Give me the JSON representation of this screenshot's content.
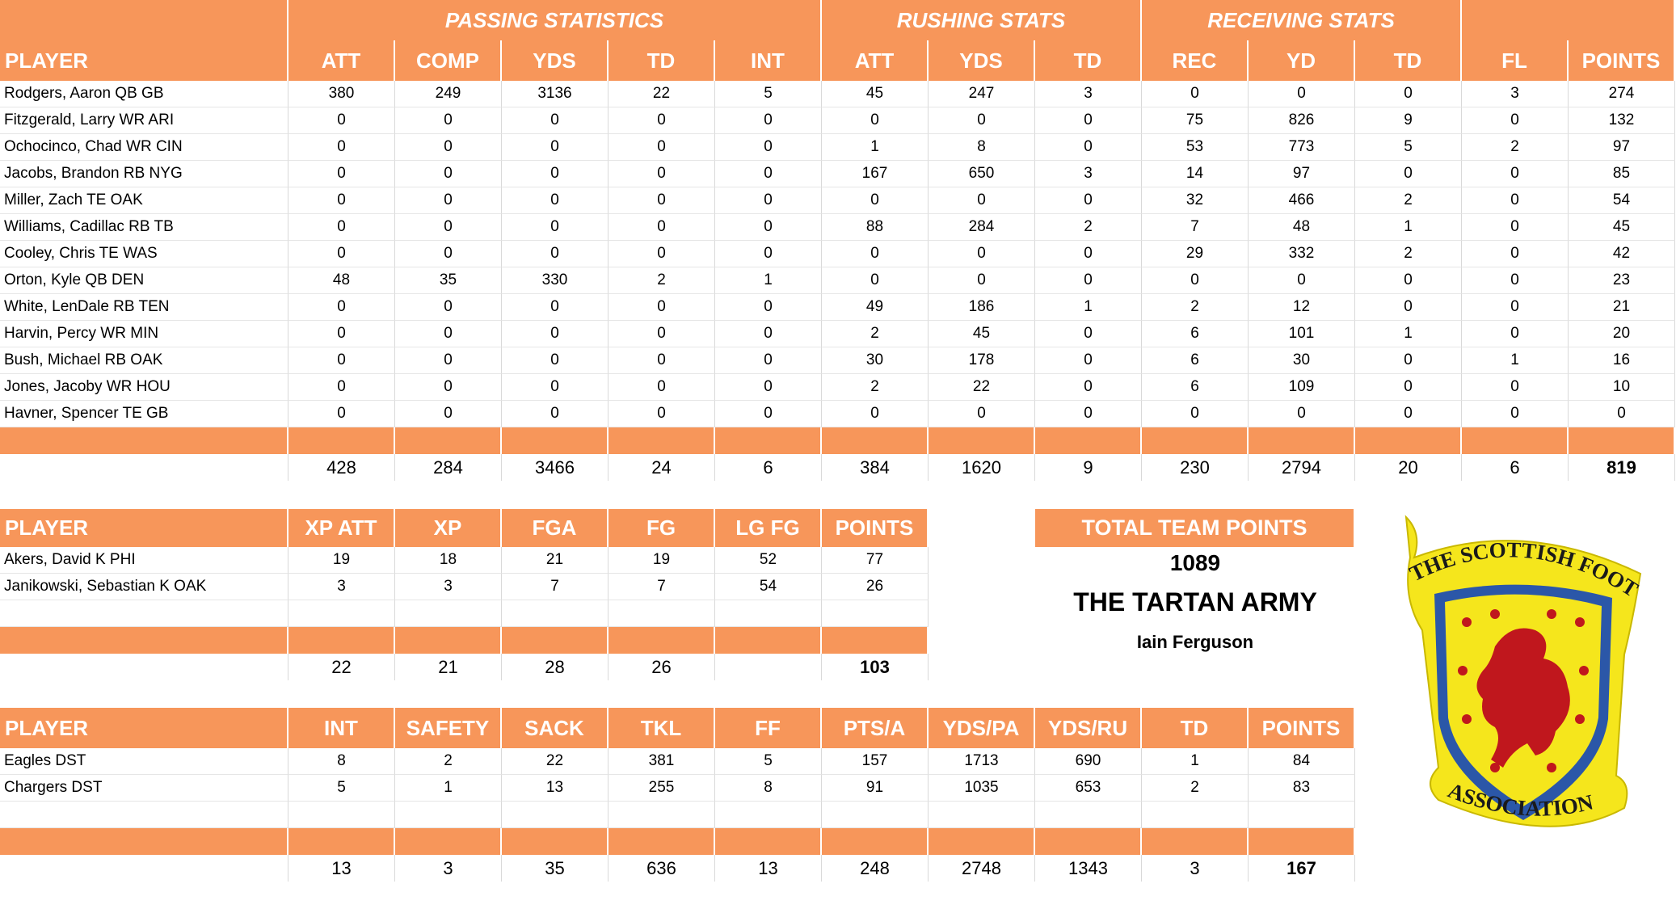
{
  "offense": {
    "group_headers": [
      "PASSING STATISTICS",
      "RUSHING STATS",
      "RECEIVING STATS"
    ],
    "columns": [
      "PLAYER",
      "ATT",
      "COMP",
      "YDS",
      "TD",
      "INT",
      "ATT",
      "YDS",
      "TD",
      "REC",
      "YD",
      "TD",
      "FL",
      "POINTS"
    ],
    "rows": [
      [
        "Rodgers, Aaron QB GB",
        380,
        249,
        3136,
        22,
        5,
        45,
        247,
        3,
        0,
        0,
        0,
        3,
        274
      ],
      [
        "Fitzgerald, Larry WR ARI",
        0,
        0,
        0,
        0,
        0,
        0,
        0,
        0,
        75,
        826,
        9,
        0,
        132
      ],
      [
        "Ochocinco, Chad WR CIN",
        0,
        0,
        0,
        0,
        0,
        1,
        8,
        0,
        53,
        773,
        5,
        2,
        97
      ],
      [
        "Jacobs, Brandon RB NYG",
        0,
        0,
        0,
        0,
        0,
        167,
        650,
        3,
        14,
        97,
        0,
        0,
        85
      ],
      [
        "Miller, Zach TE OAK",
        0,
        0,
        0,
        0,
        0,
        0,
        0,
        0,
        32,
        466,
        2,
        0,
        54
      ],
      [
        "Williams, Cadillac RB TB",
        0,
        0,
        0,
        0,
        0,
        88,
        284,
        2,
        7,
        48,
        1,
        0,
        45
      ],
      [
        "Cooley, Chris TE WAS",
        0,
        0,
        0,
        0,
        0,
        0,
        0,
        0,
        29,
        332,
        2,
        0,
        42
      ],
      [
        "Orton, Kyle QB DEN",
        48,
        35,
        330,
        2,
        1,
        0,
        0,
        0,
        0,
        0,
        0,
        0,
        23
      ],
      [
        "White, LenDale RB TEN",
        0,
        0,
        0,
        0,
        0,
        49,
        186,
        1,
        2,
        12,
        0,
        0,
        21
      ],
      [
        "Harvin, Percy WR MIN",
        0,
        0,
        0,
        0,
        0,
        2,
        45,
        0,
        6,
        101,
        1,
        0,
        20
      ],
      [
        "Bush, Michael RB OAK",
        0,
        0,
        0,
        0,
        0,
        30,
        178,
        0,
        6,
        30,
        0,
        1,
        16
      ],
      [
        "Jones, Jacoby WR HOU",
        0,
        0,
        0,
        0,
        0,
        2,
        22,
        0,
        6,
        109,
        0,
        0,
        10
      ],
      [
        "Havner, Spencer TE GB",
        0,
        0,
        0,
        0,
        0,
        0,
        0,
        0,
        0,
        0,
        0,
        0,
        0
      ]
    ],
    "totals": [
      428,
      284,
      3466,
      24,
      6,
      384,
      1620,
      9,
      230,
      2794,
      20,
      6,
      819
    ]
  },
  "kickers": {
    "columns": [
      "PLAYER",
      "XP ATT",
      "XP",
      "FGA",
      "FG",
      "LG FG",
      "POINTS"
    ],
    "rows": [
      [
        "Akers, David K PHI",
        19,
        18,
        21,
        19,
        52,
        77
      ],
      [
        "Janikowski, Sebastian K OAK",
        3,
        3,
        7,
        7,
        54,
        26
      ]
    ],
    "totals": [
      22,
      21,
      28,
      26,
      null,
      103
    ]
  },
  "defense": {
    "columns": [
      "PLAYER",
      "INT",
      "SAFETY",
      "SACK",
      "TKL",
      "FF",
      "PTS/A",
      "YDS/PA",
      "YDS/RU",
      "TD",
      "POINTS"
    ],
    "rows": [
      [
        "Eagles DST",
        8,
        2,
        22,
        381,
        5,
        157,
        1713,
        690,
        1,
        84
      ],
      [
        "Chargers DST",
        5,
        1,
        13,
        255,
        8,
        91,
        1035,
        653,
        2,
        83
      ]
    ],
    "totals": [
      13,
      3,
      35,
      636,
      13,
      248,
      2748,
      1343,
      3,
      167
    ]
  },
  "team": {
    "title": "TOTAL TEAM POINTS",
    "points": 1089,
    "name": "THE TARTAN ARMY",
    "owner": "Iain Ferguson"
  },
  "logo": {
    "top_text": "THE SCOTTISH FOOTBALL",
    "bottom_text": "ASSOCIATION"
  }
}
